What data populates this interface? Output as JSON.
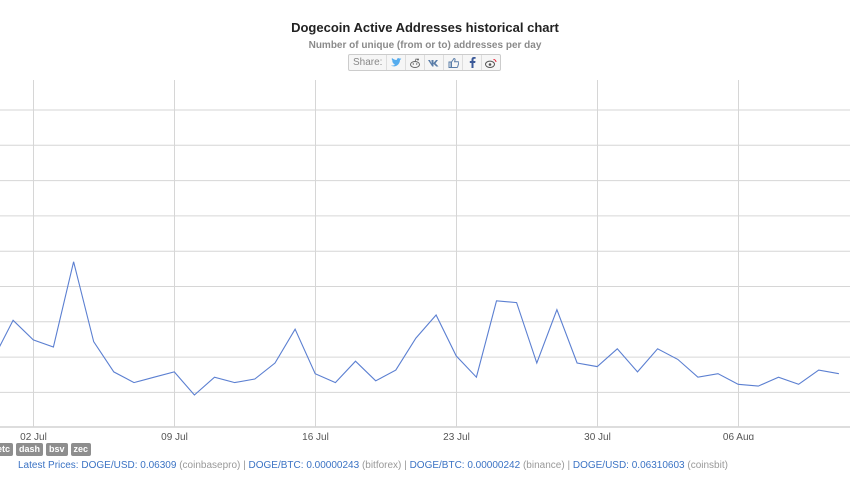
{
  "title": "Dogecoin Active Addresses historical chart",
  "subtitle": "Number of unique (from or to) addresses per day",
  "share": {
    "label": "Share:",
    "buttons": [
      "twitter-icon",
      "reddit-icon",
      "vk-icon",
      "like-icon",
      "facebook-icon",
      "weibo-icon"
    ]
  },
  "chart_data": {
    "type": "line",
    "x": [
      "2019-06-30",
      "2019-07-01",
      "2019-07-02",
      "2019-07-03",
      "2019-07-04",
      "2019-07-05",
      "2019-07-06",
      "2019-07-07",
      "2019-07-08",
      "2019-07-09",
      "2019-07-10",
      "2019-07-11",
      "2019-07-12",
      "2019-07-13",
      "2019-07-14",
      "2019-07-15",
      "2019-07-16",
      "2019-07-17",
      "2019-07-18",
      "2019-07-19",
      "2019-07-20",
      "2019-07-21",
      "2019-07-22",
      "2019-07-23",
      "2019-07-24",
      "2019-07-25",
      "2019-07-26",
      "2019-07-27",
      "2019-07-28",
      "2019-07-29",
      "2019-07-30",
      "2019-07-31",
      "2019-08-01",
      "2019-08-02",
      "2019-08-03",
      "2019-08-04",
      "2019-08-05",
      "2019-08-06",
      "2019-08-07",
      "2019-08-08",
      "2019-08-09",
      "2019-08-10",
      "2019-08-11"
    ],
    "y": [
      1.9,
      3.0,
      2.45,
      2.25,
      4.65,
      2.4,
      1.55,
      1.25,
      1.4,
      1.55,
      0.9,
      1.4,
      1.25,
      1.35,
      1.8,
      2.75,
      1.5,
      1.25,
      1.85,
      1.3,
      1.6,
      2.5,
      3.15,
      2.0,
      1.4,
      3.55,
      3.5,
      1.8,
      3.3,
      1.8,
      1.7,
      2.2,
      1.55,
      2.2,
      1.9,
      1.4,
      1.5,
      1.2,
      1.15,
      1.4,
      1.2,
      1.6,
      1.5
    ],
    "series": [
      {
        "color": "#5b7fd1"
      }
    ],
    "x_tick_labels": [
      "02 Jul",
      "09 Jul",
      "16 Jul",
      "23 Jul",
      "30 Jul",
      "06 Aug"
    ],
    "y_gridlines": 10,
    "grid": true,
    "ylim": [
      0,
      9
    ],
    "xlabel": "",
    "ylabel": ""
  },
  "coins": [
    "etc",
    "dash",
    "bsv",
    "zec"
  ],
  "prices": {
    "label": "Latest Prices:",
    "items": [
      {
        "pair": "DOGE/USD: 0.06309",
        "exchange": "(coinbasepro)"
      },
      {
        "pair": "DOGE/BTC: 0.00000243",
        "exchange": "(bitforex)"
      },
      {
        "pair": "DOGE/BTC: 0.00000242",
        "exchange": "(binance)"
      },
      {
        "pair": "DOGE/USD: 0.06310603",
        "exchange": "(coinsbit)"
      }
    ],
    "separator": " | "
  }
}
